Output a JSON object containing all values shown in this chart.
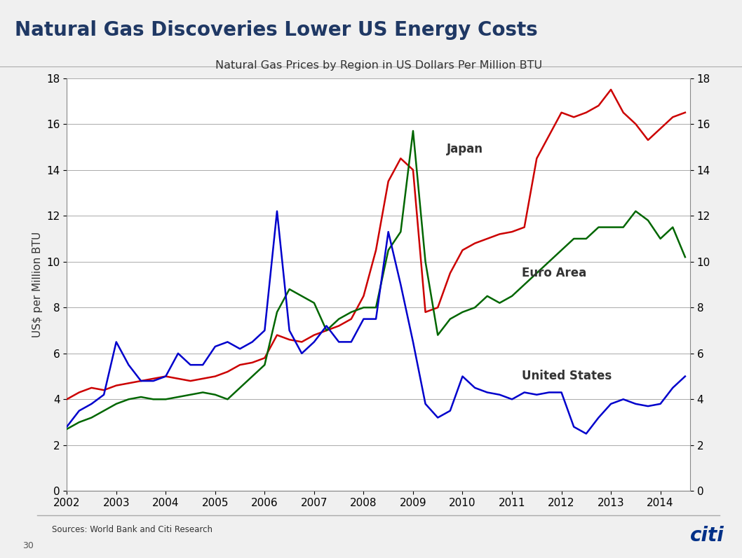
{
  "title": "Natural Gas Discoveries Lower US Energy Costs",
  "subtitle": "Natural Gas Prices by Region in US Dollars Per Million BTU",
  "ylabel": "US$ per Million BTU",
  "source_text": "Sources: World Bank and Citi Research",
  "page_number": "30",
  "title_color": "#1F3864",
  "background_color": "#F0F0F0",
  "plot_bg_color": "#FFFFFF",
  "ylim": [
    0,
    18
  ],
  "yticks": [
    0,
    2,
    4,
    6,
    8,
    10,
    12,
    14,
    16,
    18
  ],
  "line_colors": {
    "japan": "#CC0000",
    "euro": "#006600",
    "us": "#0000CC"
  },
  "line_labels": {
    "japan": "Japan",
    "euro": "Euro Area",
    "us": "United States"
  },
  "x_dates": [
    2002.0,
    2002.25,
    2002.5,
    2002.75,
    2003.0,
    2003.25,
    2003.5,
    2003.75,
    2004.0,
    2004.25,
    2004.5,
    2004.75,
    2005.0,
    2005.25,
    2005.5,
    2005.75,
    2006.0,
    2006.25,
    2006.5,
    2006.75,
    2007.0,
    2007.25,
    2007.5,
    2007.75,
    2008.0,
    2008.25,
    2008.5,
    2008.75,
    2009.0,
    2009.25,
    2009.5,
    2009.75,
    2010.0,
    2010.25,
    2010.5,
    2010.75,
    2011.0,
    2011.25,
    2011.5,
    2011.75,
    2012.0,
    2012.25,
    2012.5,
    2012.75,
    2013.0,
    2013.25,
    2013.5,
    2013.75,
    2014.0,
    2014.25,
    2014.5
  ],
  "japan": [
    4.0,
    4.3,
    4.5,
    4.4,
    4.6,
    4.7,
    4.8,
    4.9,
    5.0,
    4.9,
    4.8,
    4.9,
    5.0,
    5.2,
    5.5,
    5.6,
    5.8,
    6.8,
    6.6,
    6.5,
    6.8,
    7.0,
    7.2,
    7.5,
    8.5,
    10.5,
    13.5,
    14.5,
    14.0,
    7.8,
    8.0,
    9.5,
    10.5,
    10.8,
    11.0,
    11.2,
    11.3,
    11.5,
    14.5,
    15.5,
    16.5,
    16.3,
    16.5,
    16.8,
    17.5,
    16.5,
    16.0,
    15.3,
    15.8,
    16.3,
    16.5
  ],
  "euro": [
    2.7,
    3.0,
    3.2,
    3.5,
    3.8,
    4.0,
    4.1,
    4.0,
    4.0,
    4.1,
    4.2,
    4.3,
    4.2,
    4.0,
    4.5,
    5.0,
    5.5,
    7.8,
    8.8,
    8.5,
    8.2,
    7.0,
    7.5,
    7.8,
    8.0,
    8.0,
    10.5,
    11.3,
    15.7,
    10.0,
    6.8,
    7.5,
    7.8,
    8.0,
    8.5,
    8.2,
    8.5,
    9.0,
    9.5,
    10.0,
    10.5,
    11.0,
    11.0,
    11.5,
    11.5,
    11.5,
    12.2,
    11.8,
    11.0,
    11.5,
    10.2
  ],
  "us": [
    2.8,
    3.5,
    3.8,
    4.2,
    6.5,
    5.5,
    4.8,
    4.8,
    5.0,
    6.0,
    5.5,
    5.5,
    6.3,
    6.5,
    6.2,
    6.5,
    7.0,
    12.2,
    7.0,
    6.0,
    6.5,
    7.2,
    6.5,
    6.5,
    7.5,
    7.5,
    11.3,
    9.0,
    6.5,
    3.8,
    3.2,
    3.5,
    5.0,
    4.5,
    4.3,
    4.2,
    4.0,
    4.3,
    4.2,
    4.3,
    4.3,
    2.8,
    2.5,
    3.2,
    3.8,
    4.0,
    3.8,
    3.7,
    3.8,
    4.5,
    5.0
  ]
}
